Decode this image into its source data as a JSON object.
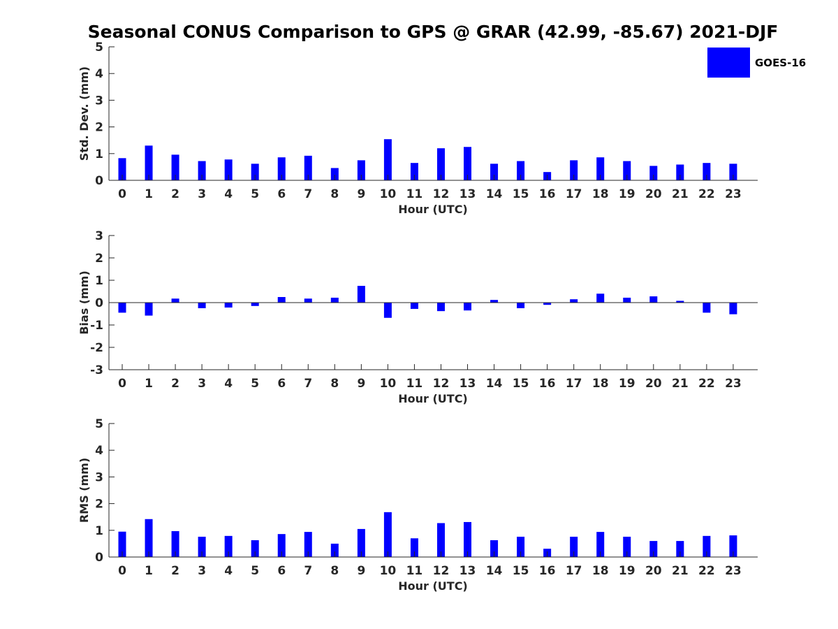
{
  "title": "Seasonal CONUS Comparison to GPS @ GRAR (42.99, -85.67) 2021-DJF",
  "legend": {
    "label": "GOES-16",
    "color": "#0000ff",
    "placement": "top-right"
  },
  "chart_data": [
    {
      "type": "bar",
      "title": "Seasonal CONUS Comparison to GPS @ GRAR (42.99, -85.67) 2021-DJF",
      "xlabel": "Hour (UTC)",
      "ylabel": "Std. Dev. (mm)",
      "ylim": [
        0,
        5
      ],
      "yticks": [
        "0",
        "1",
        "2",
        "3",
        "4",
        "5"
      ],
      "categories": [
        "0",
        "1",
        "2",
        "3",
        "4",
        "5",
        "6",
        "7",
        "8",
        "9",
        "10",
        "11",
        "12",
        "13",
        "14",
        "15",
        "16",
        "17",
        "18",
        "19",
        "20",
        "21",
        "22",
        "23"
      ],
      "series": [
        {
          "name": "GOES-16",
          "values": [
            0.83,
            1.3,
            0.96,
            0.72,
            0.78,
            0.62,
            0.86,
            0.92,
            0.46,
            0.75,
            1.54,
            0.65,
            1.2,
            1.25,
            0.62,
            0.72,
            0.31,
            0.75,
            0.86,
            0.72,
            0.54,
            0.59,
            0.65,
            0.62
          ]
        }
      ],
      "grid": false
    },
    {
      "type": "bar",
      "xlabel": "Hour (UTC)",
      "ylabel": "Bias (mm)",
      "ylim": [
        -3,
        3
      ],
      "yticks": [
        "-3",
        "-2",
        "-1",
        "0",
        "1",
        "2",
        "3"
      ],
      "categories": [
        "0",
        "1",
        "2",
        "3",
        "4",
        "5",
        "6",
        "7",
        "8",
        "9",
        "10",
        "11",
        "12",
        "13",
        "14",
        "15",
        "16",
        "17",
        "18",
        "19",
        "20",
        "21",
        "22",
        "23"
      ],
      "series": [
        {
          "name": "GOES-16",
          "values": [
            -0.45,
            -0.58,
            0.18,
            -0.25,
            -0.22,
            -0.15,
            0.25,
            0.18,
            0.22,
            0.75,
            -0.68,
            -0.28,
            -0.38,
            -0.35,
            0.12,
            -0.25,
            -0.1,
            0.15,
            0.4,
            0.22,
            0.28,
            0.08,
            -0.45,
            -0.52
          ]
        }
      ],
      "grid": false
    },
    {
      "type": "bar",
      "xlabel": "Hour (UTC)",
      "ylabel": "RMS (mm)",
      "ylim": [
        0,
        5
      ],
      "yticks": [
        "0",
        "1",
        "2",
        "3",
        "4",
        "5"
      ],
      "categories": [
        "0",
        "1",
        "2",
        "3",
        "4",
        "5",
        "6",
        "7",
        "8",
        "9",
        "10",
        "11",
        "12",
        "13",
        "14",
        "15",
        "16",
        "17",
        "18",
        "19",
        "20",
        "21",
        "22",
        "23"
      ],
      "series": [
        {
          "name": "GOES-16",
          "values": [
            0.95,
            1.42,
            0.97,
            0.76,
            0.79,
            0.63,
            0.86,
            0.94,
            0.5,
            1.05,
            1.68,
            0.7,
            1.27,
            1.31,
            0.63,
            0.76,
            0.31,
            0.76,
            0.94,
            0.76,
            0.6,
            0.6,
            0.79,
            0.81
          ]
        }
      ],
      "grid": false
    }
  ]
}
